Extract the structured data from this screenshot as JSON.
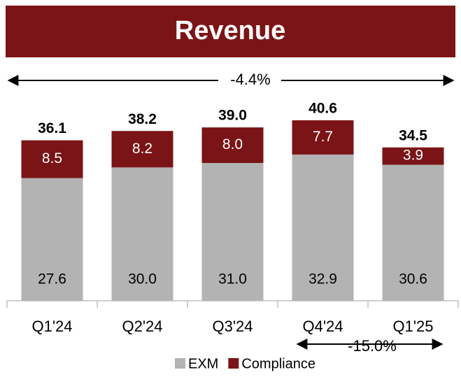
{
  "chart_data": {
    "type": "stacked_bar",
    "title": "Revenue",
    "categories": [
      "Q1'24",
      "Q2'24",
      "Q3'24",
      "Q4'24",
      "Q1'25"
    ],
    "series": [
      {
        "name": "EXM",
        "color": "#b3b3b3",
        "values": [
          27.6,
          30.0,
          31.0,
          32.9,
          30.6
        ],
        "value_labels": [
          "27.6",
          "30.0",
          "31.0",
          "32.9",
          "30.6"
        ]
      },
      {
        "name": "Compliance",
        "color": "#7b1416",
        "values": [
          8.5,
          8.2,
          8.0,
          7.7,
          3.9
        ],
        "value_labels": [
          "8.5",
          "8.2",
          "8.0",
          "7.7",
          "3.9"
        ]
      }
    ],
    "total_labels": [
      "36.1",
      "38.2",
      "39.0",
      "40.6",
      "34.5"
    ],
    "annotations": [
      "-4.4%",
      "-15.0%"
    ]
  }
}
